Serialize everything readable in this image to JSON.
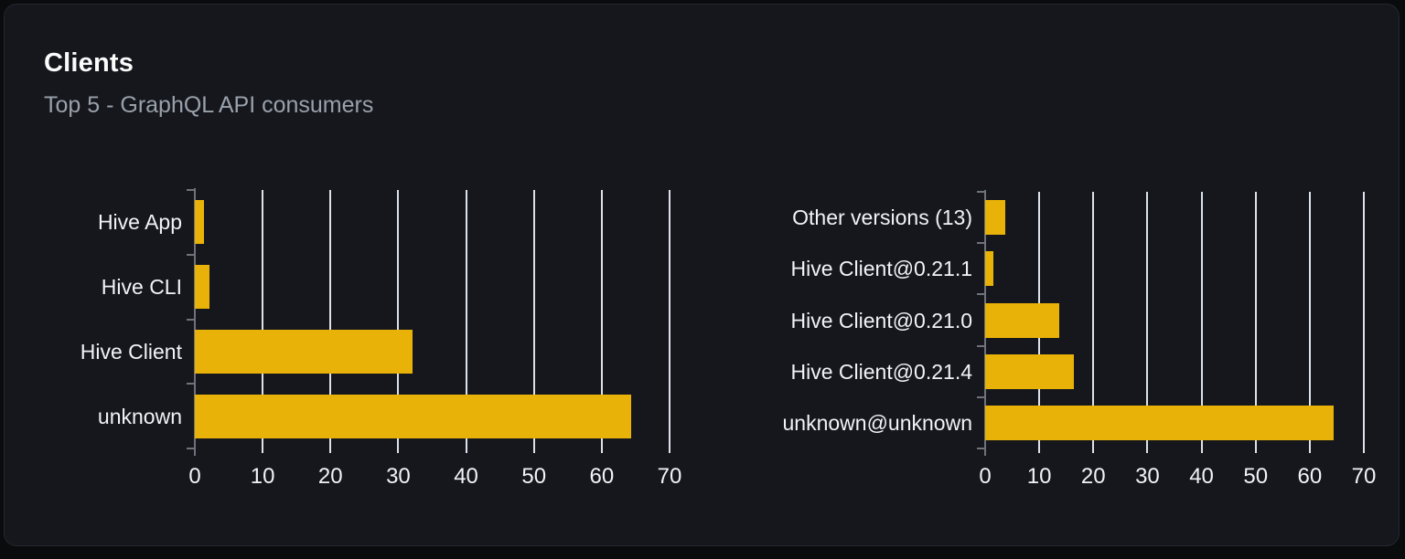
{
  "card": {
    "title": "Clients",
    "subtitle": "Top 5 - GraphQL API consumers"
  },
  "colors": {
    "page_bg": "#0a0b0d",
    "card_bg": "#15171d",
    "card_border": "#24272e",
    "bar": "#e9b208",
    "gridline": "#dce1ea",
    "axis": "#6e727b",
    "label_text": "#f2f3f5",
    "subtitle_text": "#9aa1ab"
  },
  "chart_data": [
    {
      "type": "bar",
      "orientation": "horizontal",
      "name": "clients-by-name",
      "categories": [
        "Hive App",
        "Hive CLI",
        "Hive Client",
        "unknown"
      ],
      "values": [
        1.4,
        2.1,
        32.1,
        64.4
      ],
      "xlim": [
        0,
        70
      ],
      "xticks": [
        0,
        10,
        20,
        30,
        40,
        50,
        60,
        70
      ],
      "grid": true,
      "legend": false
    },
    {
      "type": "bar",
      "orientation": "horizontal",
      "name": "clients-by-version",
      "categories": [
        "Other versions (13)",
        "Hive Client@0.21.1",
        "Hive Client@0.21.0",
        "Hive Client@0.21.4",
        "unknown@unknown"
      ],
      "values": [
        3.7,
        1.5,
        13.7,
        16.4,
        64.4
      ],
      "xlim": [
        0,
        70
      ],
      "xticks": [
        0,
        10,
        20,
        30,
        40,
        50,
        60,
        70
      ],
      "grid": true,
      "legend": false
    }
  ]
}
